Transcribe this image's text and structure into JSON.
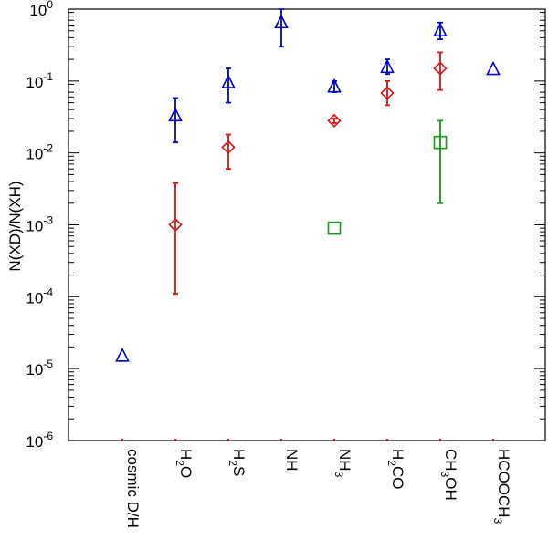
{
  "chart_data": {
    "type": "scatter",
    "ylabel": "N(XD)/N(XH)",
    "yscale": "log",
    "ylim": [
      1e-06,
      1
    ],
    "grid": false,
    "categories": [
      {
        "base": "cosmic D/H",
        "parts": [
          {
            "t": "cosmic D/H",
            "sub": false
          }
        ]
      },
      {
        "base": "H2O",
        "parts": [
          {
            "t": "H",
            "sub": false
          },
          {
            "t": "2",
            "sub": true
          },
          {
            "t": "O",
            "sub": false
          }
        ]
      },
      {
        "base": "H2S",
        "parts": [
          {
            "t": "H",
            "sub": false
          },
          {
            "t": "2",
            "sub": true
          },
          {
            "t": "S",
            "sub": false
          }
        ]
      },
      {
        "base": "NH",
        "parts": [
          {
            "t": "NH",
            "sub": false
          }
        ]
      },
      {
        "base": "NH3",
        "parts": [
          {
            "t": "NH",
            "sub": false
          },
          {
            "t": "3",
            "sub": true
          }
        ]
      },
      {
        "base": "H2CO",
        "parts": [
          {
            "t": "H",
            "sub": false
          },
          {
            "t": "2",
            "sub": true
          },
          {
            "t": "CO",
            "sub": false
          }
        ]
      },
      {
        "base": "CH3OH",
        "parts": [
          {
            "t": "CH",
            "sub": false
          },
          {
            "t": "3",
            "sub": true
          },
          {
            "t": "OH",
            "sub": false
          }
        ]
      },
      {
        "base": "HCOOCH3",
        "parts": [
          {
            "t": "HCOOCH",
            "sub": false
          },
          {
            "t": "3",
            "sub": true
          }
        ]
      }
    ],
    "yticks": [
      {
        "value": 1.0,
        "base": "10",
        "exp": "0"
      },
      {
        "value": 0.1,
        "base": "10",
        "exp": "-1"
      },
      {
        "value": 0.01,
        "base": "10",
        "exp": "-2"
      },
      {
        "value": 0.001,
        "base": "10",
        "exp": "-3"
      },
      {
        "value": 0.0001,
        "base": "10",
        "exp": "-4"
      },
      {
        "value": 1e-05,
        "base": "10",
        "exp": "-5"
      },
      {
        "value": 1e-06,
        "base": "10",
        "exp": "-6"
      }
    ],
    "series": [
      {
        "marker": "triangle",
        "color": "#0000cc",
        "points": [
          {
            "cat": 0,
            "y": 1.5e-05
          },
          {
            "cat": 1,
            "y": 0.033,
            "lo": 0.014,
            "hi": 0.058
          },
          {
            "cat": 2,
            "y": 0.095,
            "lo": 0.05,
            "hi": 0.15
          },
          {
            "cat": 3,
            "y": 0.65,
            "lo": 0.3,
            "hi": 1.0
          },
          {
            "cat": 4,
            "y": 0.083,
            "lo": 0.07,
            "hi": 0.1
          },
          {
            "cat": 5,
            "y": 0.155,
            "lo": 0.125,
            "hi": 0.2
          },
          {
            "cat": 6,
            "y": 0.5,
            "lo": 0.38,
            "hi": 0.65
          },
          {
            "cat": 7,
            "y": 0.145
          }
        ]
      },
      {
        "marker": "diamond",
        "color": "#dd1111",
        "points": [
          {
            "cat": 1,
            "y": 0.001,
            "lo": 0.00011,
            "hi": 0.0038
          },
          {
            "cat": 2,
            "y": 0.012,
            "lo": 0.006,
            "hi": 0.018
          },
          {
            "cat": 4,
            "y": 0.028,
            "lo": 0.026,
            "hi": 0.03
          },
          {
            "cat": 5,
            "y": 0.068,
            "lo": 0.046,
            "hi": 0.1
          },
          {
            "cat": 6,
            "y": 0.15,
            "lo": 0.075,
            "hi": 0.25
          }
        ]
      },
      {
        "marker": "square",
        "color": "#119911",
        "points": [
          {
            "cat": 4,
            "y": 0.0009
          },
          {
            "cat": 6,
            "y": 0.014,
            "lo": 0.002,
            "hi": 0.028
          }
        ]
      }
    ]
  }
}
